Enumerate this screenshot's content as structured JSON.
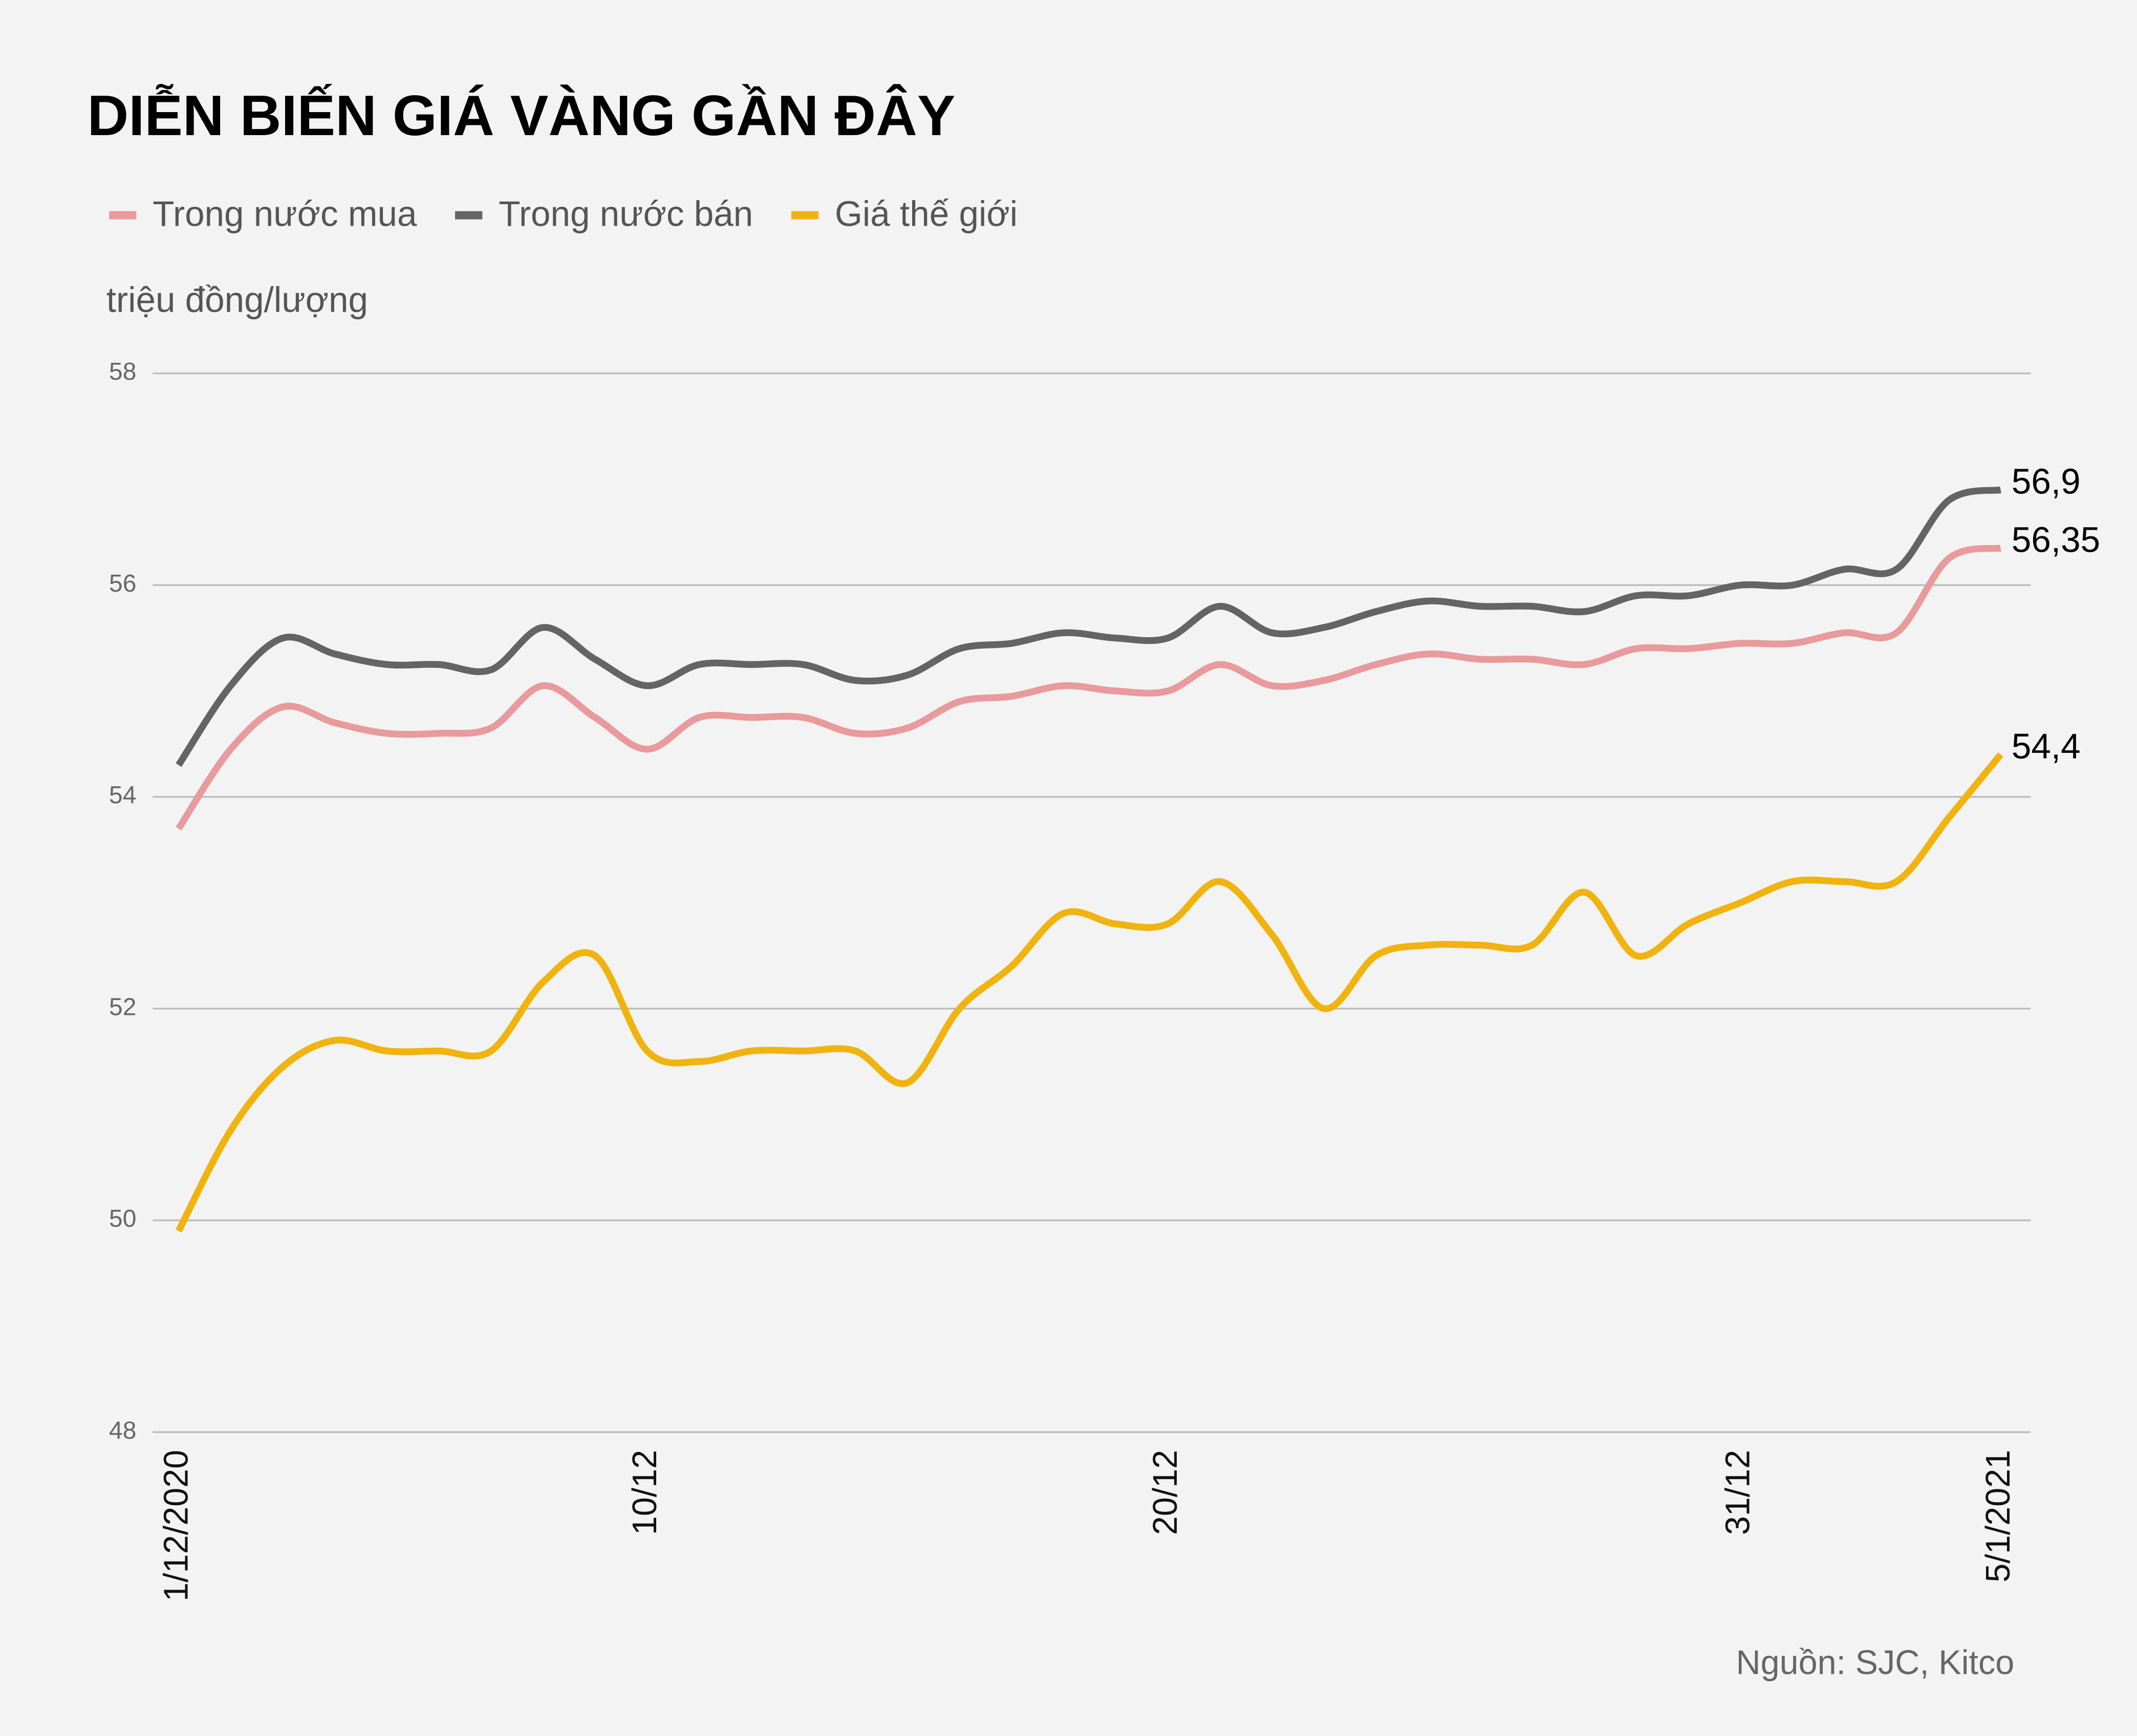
{
  "chart_data": {
    "type": "line",
    "title": "DIỄN BIẾN GIÁ VÀNG GẦN ĐÂY",
    "y_label": "triệu đồng/lượng",
    "source": "Nguồn: SJC, Kitco",
    "categories": [
      "1/12/2020",
      null,
      null,
      null,
      null,
      null,
      null,
      null,
      null,
      "10/12",
      null,
      null,
      null,
      null,
      null,
      null,
      null,
      null,
      null,
      "20/12",
      null,
      null,
      null,
      null,
      null,
      null,
      null,
      null,
      null,
      null,
      "31/12",
      null,
      null,
      null,
      null,
      "5/1/2021"
    ],
    "series": [
      {
        "name": "Trong nước mua",
        "color": "#e89a9c",
        "values": [
          53.7,
          54.45,
          54.85,
          54.7,
          54.6,
          54.6,
          54.65,
          55.05,
          54.75,
          54.45,
          54.75,
          54.75,
          54.75,
          54.6,
          54.65,
          54.9,
          54.95,
          55.05,
          55.0,
          55.0,
          55.25,
          55.05,
          55.1,
          55.25,
          55.35,
          55.3,
          55.3,
          55.25,
          55.4,
          55.4,
          55.45,
          55.45,
          55.55,
          55.55,
          56.25,
          56.35
        ],
        "value_labels": [
          null,
          null,
          null,
          null,
          null,
          null,
          null,
          null,
          null,
          null,
          null,
          null,
          null,
          null,
          null,
          null,
          null,
          null,
          null,
          null,
          null,
          null,
          null,
          null,
          null,
          null,
          null,
          null,
          null,
          null,
          null,
          null,
          null,
          null,
          null,
          "56,35"
        ]
      },
      {
        "name": "Trong nước bán",
        "color": "#646464",
        "values": [
          54.3,
          55.05,
          55.5,
          55.35,
          55.25,
          55.25,
          55.2,
          55.6,
          55.3,
          55.05,
          55.25,
          55.25,
          55.25,
          55.1,
          55.15,
          55.4,
          55.45,
          55.55,
          55.5,
          55.5,
          55.8,
          55.55,
          55.6,
          55.75,
          55.85,
          55.8,
          55.8,
          55.75,
          55.9,
          55.9,
          56.0,
          56.0,
          56.15,
          56.15,
          56.8,
          56.9
        ],
        "value_labels": [
          null,
          null,
          null,
          null,
          null,
          null,
          null,
          null,
          null,
          null,
          null,
          null,
          null,
          null,
          null,
          null,
          null,
          null,
          null,
          null,
          null,
          null,
          null,
          null,
          null,
          null,
          null,
          null,
          null,
          null,
          null,
          null,
          null,
          null,
          null,
          "56,9"
        ]
      },
      {
        "name": "Giá thế giới",
        "color": "#f0b30f",
        "values": [
          49.9,
          50.85,
          51.45,
          51.7,
          51.6,
          51.6,
          51.6,
          52.25,
          52.5,
          51.6,
          51.5,
          51.6,
          51.6,
          51.6,
          51.3,
          52.0,
          52.4,
          52.9,
          52.8,
          52.8,
          53.2,
          52.7,
          52.0,
          52.5,
          52.6,
          52.6,
          52.6,
          53.1,
          52.5,
          52.8,
          53.0,
          53.2,
          53.2,
          53.2,
          53.8,
          54.4
        ],
        "value_labels": [
          null,
          null,
          null,
          null,
          null,
          null,
          null,
          null,
          null,
          null,
          null,
          null,
          null,
          null,
          null,
          null,
          null,
          null,
          null,
          null,
          null,
          null,
          null,
          null,
          null,
          null,
          null,
          null,
          null,
          null,
          null,
          null,
          null,
          null,
          null,
          "54,4"
        ]
      }
    ],
    "ylim": [
      48,
      58
    ],
    "yticks": [
      48,
      50,
      52,
      54,
      56,
      58
    ],
    "grid": true,
    "legend": "top"
  }
}
